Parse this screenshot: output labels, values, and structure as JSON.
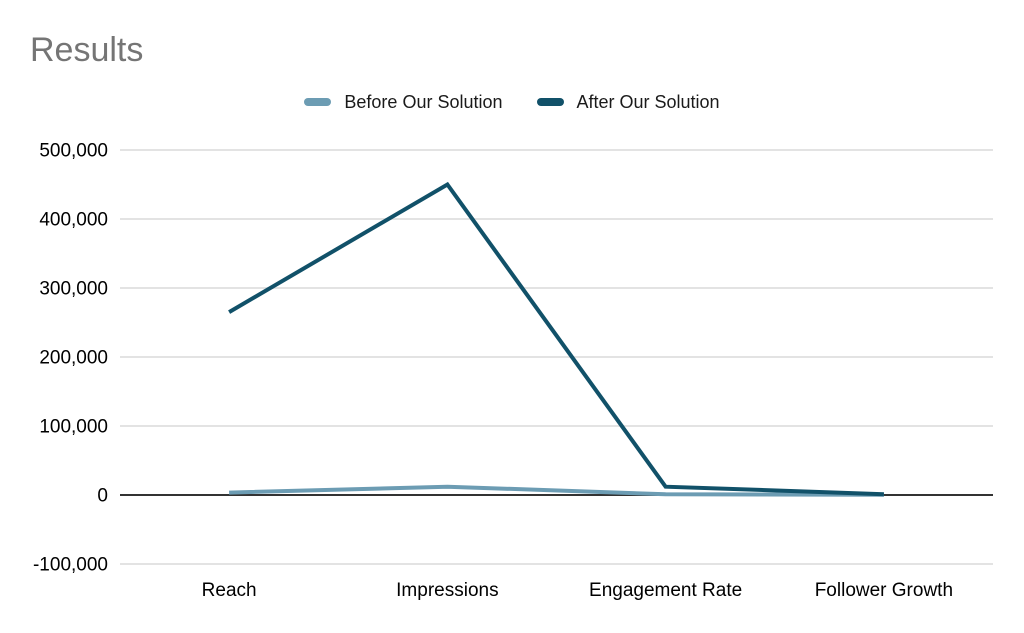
{
  "chart": {
    "title": "Results"
  },
  "chart_data": {
    "type": "line",
    "title": "Results",
    "categories": [
      "Reach",
      "Impressions",
      "Engagement Rate",
      "Follower Growth"
    ],
    "series": [
      {
        "name": "Before Our Solution",
        "color": "#6c9cb3",
        "values": [
          3500,
          12000,
          1000,
          300
        ]
      },
      {
        "name": "After Our Solution",
        "color": "#115169",
        "values": [
          265000,
          450000,
          12000,
          1200
        ]
      }
    ],
    "xlabel": "",
    "ylabel": "",
    "ylim": [
      -100000,
      500000
    ],
    "ytick_step": 100000,
    "ytick_labels": [
      "-100,000",
      "0",
      "100,000",
      "200,000",
      "300,000",
      "400,000",
      "500,000"
    ],
    "grid": true,
    "legend_position": "top",
    "colors": {
      "grid": "#e3e3e3",
      "zero_axis": "#333333",
      "title_text": "#757575",
      "tick_text": "#000000",
      "legend_text": "#1a1a1a",
      "background": "#ffffff"
    }
  }
}
